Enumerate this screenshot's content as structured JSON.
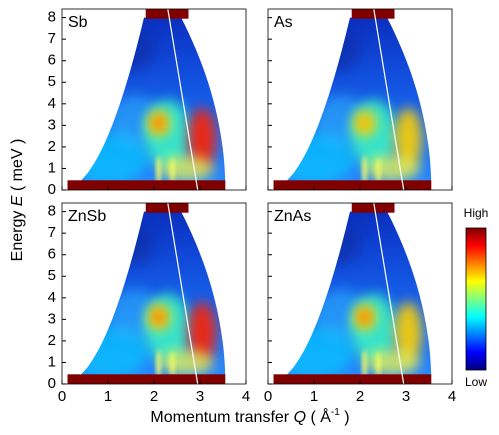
{
  "chart_data": [
    {
      "type": "heatmap",
      "label": "Sb",
      "xlim": [
        0,
        4
      ],
      "ylim": [
        0,
        8.4
      ],
      "xticks": [
        0,
        1,
        2,
        3,
        4
      ],
      "yticks": [
        0,
        1,
        2,
        3,
        4,
        5,
        6,
        7,
        8
      ]
    },
    {
      "type": "heatmap",
      "label": "As",
      "xlim": [
        0,
        4
      ],
      "ylim": [
        0,
        8.4
      ],
      "xticks": [
        0,
        1,
        2,
        3,
        4
      ],
      "yticks": [
        0,
        1,
        2,
        3,
        4,
        5,
        6,
        7,
        8
      ]
    },
    {
      "type": "heatmap",
      "label": "ZnSb",
      "xlim": [
        0,
        4
      ],
      "ylim": [
        0,
        8.4
      ],
      "xticks": [
        0,
        1,
        2,
        3,
        4
      ],
      "yticks": [
        0,
        1,
        2,
        3,
        4,
        5,
        6,
        7,
        8
      ]
    },
    {
      "type": "heatmap",
      "label": "ZnAs",
      "xlim": [
        0,
        4
      ],
      "ylim": [
        0,
        8.4
      ],
      "xticks": [
        0,
        1,
        2,
        3,
        4
      ],
      "yticks": [
        0,
        1,
        2,
        3,
        4,
        5,
        6,
        7,
        8
      ]
    }
  ],
  "y_axis_label": [
    "Energy ",
    "E",
    " ( meV )"
  ],
  "x_axis_label": [
    "Momentum transfer ",
    "Q",
    " ( Å",
    "-1",
    " )"
  ],
  "colorbar": {
    "high": "High",
    "low": "Low"
  }
}
